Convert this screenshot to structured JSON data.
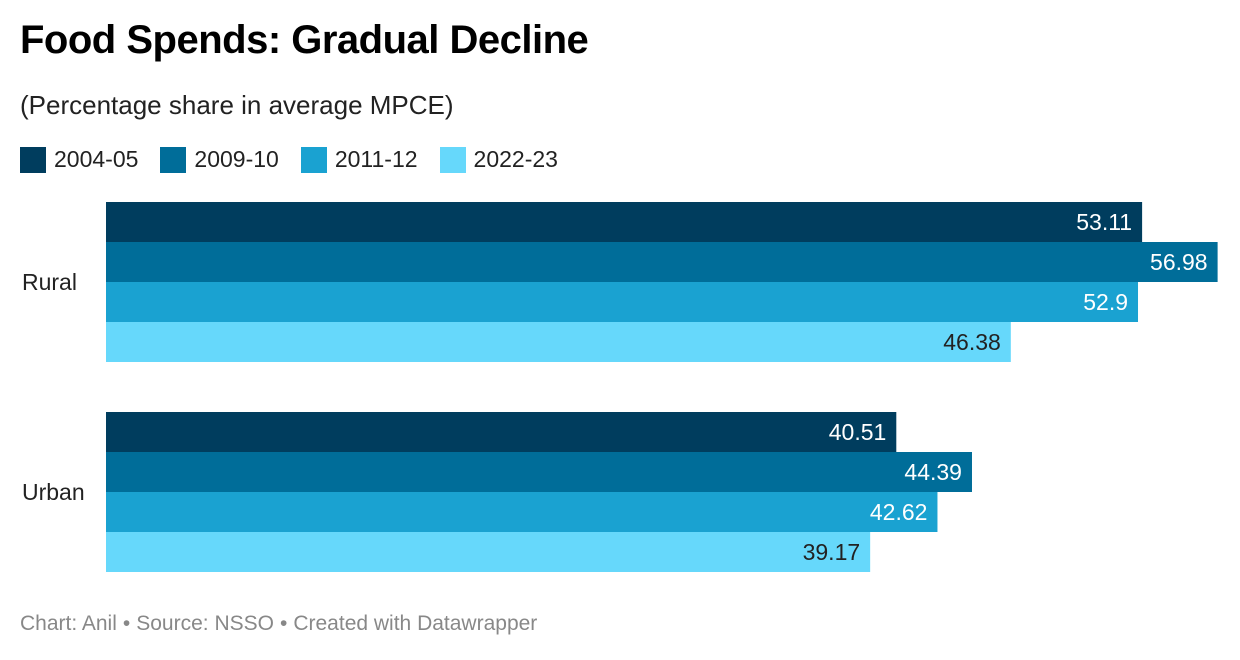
{
  "chart_data": {
    "type": "bar",
    "orientation": "horizontal",
    "title": "Food Spends: Gradual Decline",
    "subtitle": "(Percentage share in average MPCE)",
    "categories": [
      "Rural",
      "Urban"
    ],
    "series": [
      {
        "name": "2004-05",
        "color": "#003d5e",
        "values": [
          53.11,
          40.51
        ],
        "labels": [
          "53.11",
          "40.51"
        ]
      },
      {
        "name": "2009-10",
        "color": "#006d99",
        "values": [
          56.98,
          44.39
        ],
        "labels": [
          "56.98",
          "44.39"
        ]
      },
      {
        "name": "2011-12",
        "color": "#1aa2d1",
        "values": [
          52.9,
          42.62
        ],
        "labels": [
          "52.9",
          "42.62"
        ]
      },
      {
        "name": "2022-23",
        "color": "#66d8fb",
        "values": [
          46.38,
          39.17
        ],
        "labels": [
          "46.38",
          "39.17"
        ]
      }
    ],
    "xlim": [
      0,
      57
    ],
    "grid": false,
    "legend_position": "top-left",
    "label_colors": {
      "dark": "#ffffff",
      "light": "#222222"
    }
  },
  "footer": {
    "chart_by": "Chart: Anil",
    "source": "Source: NSSO",
    "created_with": "Created with Datawrapper",
    "separator": "•"
  }
}
